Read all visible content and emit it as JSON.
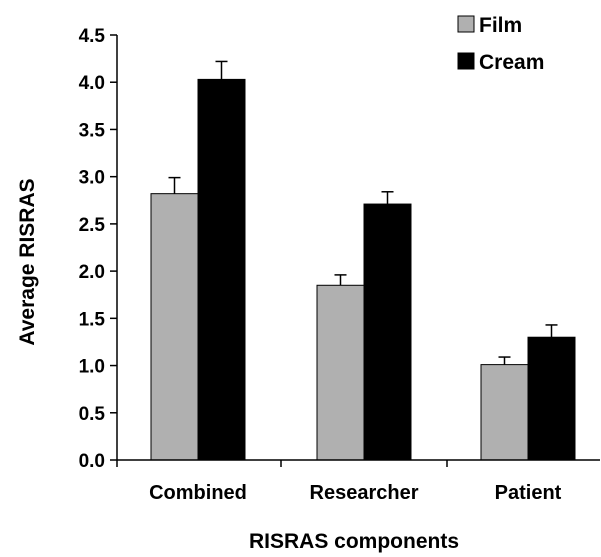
{
  "chart_data": {
    "type": "bar",
    "xlabel": "RISRAS components",
    "ylabel": "Average RISRAS",
    "ylim": [
      0,
      4.5
    ],
    "ytick_step": 0.5,
    "yticks": [
      "0.0",
      "0.5",
      "1.0",
      "1.5",
      "2.0",
      "2.5",
      "3.0",
      "3.5",
      "4.0",
      "4.5"
    ],
    "categories": [
      "Combined",
      "Researcher",
      "Patient"
    ],
    "series": [
      {
        "name": "Film",
        "color": "#b0b0b0",
        "values": [
          2.82,
          1.85,
          1.01
        ],
        "errors": [
          0.17,
          0.11,
          0.08
        ]
      },
      {
        "name": "Cream",
        "color": "#000000",
        "values": [
          4.03,
          2.71,
          1.3
        ],
        "errors": [
          0.19,
          0.13,
          0.13
        ]
      }
    ],
    "error_bars": true,
    "grid": false,
    "legend_position": "top-right"
  }
}
